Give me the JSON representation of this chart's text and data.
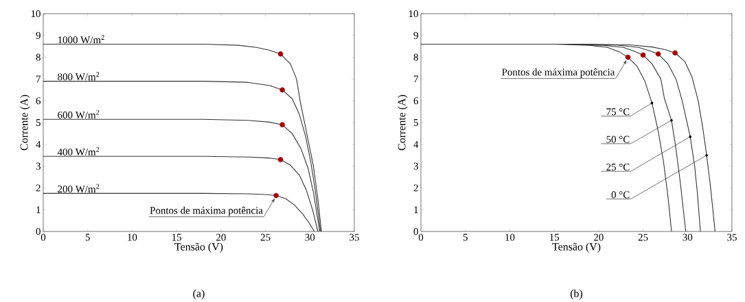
{
  "chart_data": [
    {
      "type": "line",
      "xlabel": "Tensão (V)",
      "ylabel": "Corrente (A)",
      "xlim": [
        0,
        35
      ],
      "ylim": [
        0,
        10
      ],
      "xticks": [
        0,
        5,
        10,
        15,
        20,
        25,
        30,
        35
      ],
      "yticks": [
        0,
        1,
        2,
        3,
        4,
        5,
        6,
        7,
        8,
        9,
        10
      ],
      "marker": "none",
      "line_style": "solid",
      "series": [
        {
          "name": "1000 W/m$^{2}$",
          "color": "#333333",
          "x": [
            0,
            18,
            22,
            24,
            25.5,
            26.7,
            27.8,
            28.5,
            28.9,
            29.5,
            30.0,
            30.4,
            30.9,
            31.3
          ],
          "values": [
            8.6,
            8.6,
            8.55,
            8.45,
            8.32,
            8.15,
            7.7,
            7.0,
            6.0,
            4.8,
            3.8,
            3.0,
            1.5,
            0
          ]
        },
        {
          "name": "800 W/m$^{2}$",
          "color": "#333333",
          "x": [
            0,
            18,
            23,
            25.5,
            26.9,
            28,
            28.8,
            29.5,
            30.1,
            30.6,
            31.2
          ],
          "values": [
            6.9,
            6.9,
            6.85,
            6.7,
            6.5,
            6.1,
            5.4,
            4.4,
            3.2,
            1.9,
            0
          ]
        },
        {
          "name": "600 W/m$^{2}$",
          "color": "#333333",
          "x": [
            0,
            18,
            23,
            25.5,
            26.9,
            28,
            29,
            29.8,
            30.4,
            31.1
          ],
          "values": [
            5.15,
            5.15,
            5.1,
            5.02,
            4.9,
            4.5,
            3.8,
            2.9,
            1.8,
            0
          ]
        },
        {
          "name": "400 W/m$^{2}$",
          "color": "#333333",
          "x": [
            0,
            18,
            23,
            25.5,
            26.7,
            27.8,
            28.8,
            29.6,
            30.3,
            30.9
          ],
          "values": [
            3.45,
            3.45,
            3.42,
            3.37,
            3.3,
            3.05,
            2.6,
            1.9,
            1.0,
            0
          ]
        },
        {
          "name": "200 W/m$^{2}$",
          "color": "#333333",
          "x": [
            0,
            18,
            23,
            25,
            26.2,
            27.3,
            28.3,
            29.2,
            29.9,
            30.5
          ],
          "values": [
            1.75,
            1.75,
            1.73,
            1.7,
            1.65,
            1.5,
            1.2,
            0.8,
            0.4,
            0
          ]
        },
        {
          "type": "scatter",
          "marker": "circle",
          "color": "#a00000",
          "x": [
            26.7,
            26.9,
            26.9,
            26.7,
            26.2
          ],
          "values": [
            8.15,
            6.5,
            4.9,
            3.3,
            1.65
          ]
        }
      ],
      "annotations": [
        {
          "text": "Pontos de máxima potência",
          "x": 26.2,
          "y": 1.65
        },
        "(a)"
      ]
    },
    {
      "type": "line",
      "xlabel": "Tensão (V)",
      "ylabel": "Corrente (A)",
      "xlim": [
        0,
        35
      ],
      "ylim": [
        0,
        10
      ],
      "xticks": [
        0,
        5,
        10,
        15,
        20,
        25,
        30,
        35
      ],
      "yticks": [
        0,
        1,
        2,
        3,
        4,
        5,
        6,
        7,
        8,
        9,
        10
      ],
      "marker": "none",
      "line_style": "solid",
      "series": [
        {
          "color": "#333333",
          "x": [
            0,
            15,
            19,
            21,
            22.3,
            23.3,
            24.3,
            25.2,
            26.0,
            26.7,
            27.3,
            27.8,
            28.2
          ],
          "values": [
            8.6,
            8.6,
            8.55,
            8.45,
            8.25,
            8.0,
            7.6,
            6.9,
            5.9,
            4.6,
            3.2,
            1.6,
            0
          ]
        },
        {
          "color": "#333333",
          "x": [
            0,
            16,
            20.5,
            22.8,
            24,
            25.0,
            26,
            27,
            27.4,
            28.2,
            28.7,
            29.2,
            29.8
          ],
          "values": [
            8.6,
            8.6,
            8.55,
            8.45,
            8.28,
            8.1,
            7.7,
            7.0,
            6.1,
            5.1,
            3.8,
            2.2,
            0
          ]
        },
        {
          "color": "#333333",
          "x": [
            0,
            17,
            22,
            24.5,
            25.7,
            26.7,
            27.8,
            28.7,
            29.4,
            30.3,
            30.8,
            31.1,
            31.45
          ],
          "values": [
            8.6,
            8.6,
            8.56,
            8.45,
            8.3,
            8.15,
            7.7,
            7.0,
            6.0,
            4.35,
            3.0,
            1.8,
            0
          ]
        },
        {
          "color": "#333333",
          "x": [
            0,
            18,
            23.5,
            26,
            27.5,
            28.6,
            29.7,
            30.5,
            31.2,
            31.7,
            32.15,
            32.6,
            33.1
          ],
          "values": [
            8.6,
            8.6,
            8.57,
            8.47,
            8.35,
            8.2,
            7.8,
            7.1,
            6.0,
            4.8,
            3.5,
            2.0,
            0
          ]
        },
        {
          "type": "scatter",
          "marker": "circle",
          "color": "#a00000",
          "x": [
            23.3,
            25.0,
            26.7,
            28.6
          ],
          "values": [
            8.0,
            8.1,
            8.15,
            8.2
          ]
        }
      ],
      "annotations": [
        {
          "text": "Pontos de máxima potência",
          "x": 23.3,
          "y": 8.0
        },
        {
          "text": "75 °C",
          "x": 26.0,
          "y": 5.9
        },
        {
          "text": "50 °C",
          "x": 28.2,
          "y": 5.1
        },
        {
          "text": "25 °C",
          "x": 30.3,
          "y": 4.35
        },
        {
          "text": "0 °C",
          "x": 32.15,
          "y": 3.5
        },
        "(b)"
      ]
    }
  ]
}
